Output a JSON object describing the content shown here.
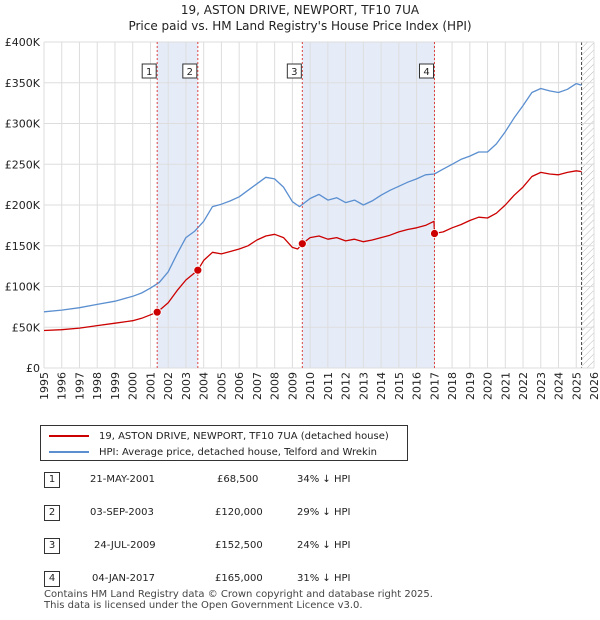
{
  "chart_data": {
    "type": "line",
    "title": "19, ASTON DRIVE, NEWPORT, TF10 7UA",
    "subtitle": "Price paid vs. HM Land Registry's House Price Index (HPI)",
    "xlim": [
      1995,
      2026
    ],
    "ylim": [
      0,
      400000
    ],
    "x_ticks": [
      "1995",
      "1996",
      "1997",
      "1998",
      "1999",
      "2000",
      "2001",
      "2002",
      "2003",
      "2004",
      "2005",
      "2006",
      "2007",
      "2008",
      "2009",
      "2010",
      "2011",
      "2012",
      "2013",
      "2014",
      "2015",
      "2016",
      "2017",
      "2018",
      "2019",
      "2020",
      "2021",
      "2022",
      "2023",
      "2024",
      "2025",
      "2026"
    ],
    "y_ticks": [
      {
        "label": "£0",
        "value": 0
      },
      {
        "label": "£50K",
        "value": 50000
      },
      {
        "label": "£100K",
        "value": 100000
      },
      {
        "label": "£150K",
        "value": 150000
      },
      {
        "label": "£200K",
        "value": 200000
      },
      {
        "label": "£250K",
        "value": 250000
      },
      {
        "label": "£300K",
        "value": 300000
      },
      {
        "label": "£350K",
        "value": 350000
      },
      {
        "label": "£400K",
        "value": 400000
      }
    ],
    "grid": true,
    "data_end": 2025.3,
    "colors": {
      "property": "#cc0000",
      "hpi": "#5b8fd0",
      "shade": "#dce6f5",
      "sale_line": "#dd4444",
      "grid": "#dddddd"
    },
    "series": [
      {
        "name": "19, ASTON DRIVE, NEWPORT, TF10 7UA (detached house)",
        "color": "#cc0000",
        "points": [
          [
            1995.0,
            46000
          ],
          [
            1996.0,
            47000
          ],
          [
            1997.0,
            49000
          ],
          [
            1998.0,
            52000
          ],
          [
            1999.0,
            55000
          ],
          [
            2000.0,
            58000
          ],
          [
            2000.5,
            61000
          ],
          [
            2001.38,
            68500
          ],
          [
            2002.0,
            80000
          ],
          [
            2002.5,
            95000
          ],
          [
            2003.0,
            108000
          ],
          [
            2003.67,
            120000
          ],
          [
            2004.0,
            132000
          ],
          [
            2004.5,
            142000
          ],
          [
            2005.0,
            140000
          ],
          [
            2005.5,
            143000
          ],
          [
            2006.0,
            146000
          ],
          [
            2006.5,
            150000
          ],
          [
            2007.0,
            157000
          ],
          [
            2007.5,
            162000
          ],
          [
            2008.0,
            164000
          ],
          [
            2008.5,
            160000
          ],
          [
            2009.0,
            148000
          ],
          [
            2009.3,
            146000
          ],
          [
            2009.56,
            152500
          ],
          [
            2010.0,
            160000
          ],
          [
            2010.5,
            162000
          ],
          [
            2011.0,
            158000
          ],
          [
            2011.5,
            160000
          ],
          [
            2012.0,
            156000
          ],
          [
            2012.5,
            158000
          ],
          [
            2013.0,
            155000
          ],
          [
            2013.5,
            157000
          ],
          [
            2014.0,
            160000
          ],
          [
            2014.5,
            163000
          ],
          [
            2015.0,
            167000
          ],
          [
            2015.5,
            170000
          ],
          [
            2016.0,
            172000
          ],
          [
            2016.5,
            175000
          ],
          [
            2016.98,
            180000
          ],
          [
            2017.01,
            165000
          ],
          [
            2017.5,
            167000
          ],
          [
            2018.0,
            172000
          ],
          [
            2018.5,
            176000
          ],
          [
            2019.0,
            181000
          ],
          [
            2019.5,
            185000
          ],
          [
            2020.0,
            184000
          ],
          [
            2020.5,
            190000
          ],
          [
            2021.0,
            200000
          ],
          [
            2021.5,
            212000
          ],
          [
            2022.0,
            222000
          ],
          [
            2022.5,
            235000
          ],
          [
            2023.0,
            240000
          ],
          [
            2023.5,
            238000
          ],
          [
            2024.0,
            237000
          ],
          [
            2024.5,
            240000
          ],
          [
            2025.0,
            242000
          ],
          [
            2025.3,
            241000
          ]
        ]
      },
      {
        "name": "HPI: Average price, detached house, Telford and Wrekin",
        "color": "#5b8fd0",
        "points": [
          [
            1995.0,
            69000
          ],
          [
            1996.0,
            71000
          ],
          [
            1997.0,
            74000
          ],
          [
            1998.0,
            78000
          ],
          [
            1999.0,
            82000
          ],
          [
            2000.0,
            88000
          ],
          [
            2000.5,
            92000
          ],
          [
            2001.0,
            98000
          ],
          [
            2001.5,
            105000
          ],
          [
            2002.0,
            118000
          ],
          [
            2002.5,
            140000
          ],
          [
            2003.0,
            160000
          ],
          [
            2003.5,
            168000
          ],
          [
            2004.0,
            180000
          ],
          [
            2004.5,
            198000
          ],
          [
            2005.0,
            201000
          ],
          [
            2005.5,
            205000
          ],
          [
            2006.0,
            210000
          ],
          [
            2006.5,
            218000
          ],
          [
            2007.0,
            226000
          ],
          [
            2007.5,
            234000
          ],
          [
            2008.0,
            232000
          ],
          [
            2008.5,
            222000
          ],
          [
            2009.0,
            204000
          ],
          [
            2009.4,
            198000
          ],
          [
            2010.0,
            208000
          ],
          [
            2010.5,
            213000
          ],
          [
            2011.0,
            206000
          ],
          [
            2011.5,
            209000
          ],
          [
            2012.0,
            203000
          ],
          [
            2012.5,
            206000
          ],
          [
            2013.0,
            200000
          ],
          [
            2013.5,
            205000
          ],
          [
            2014.0,
            212000
          ],
          [
            2014.5,
            218000
          ],
          [
            2015.0,
            223000
          ],
          [
            2015.5,
            228000
          ],
          [
            2016.0,
            232000
          ],
          [
            2016.5,
            237000
          ],
          [
            2017.0,
            238000
          ],
          [
            2017.5,
            244000
          ],
          [
            2018.0,
            250000
          ],
          [
            2018.5,
            256000
          ],
          [
            2019.0,
            260000
          ],
          [
            2019.5,
            265000
          ],
          [
            2020.0,
            265000
          ],
          [
            2020.5,
            275000
          ],
          [
            2021.0,
            290000
          ],
          [
            2021.5,
            307000
          ],
          [
            2022.0,
            322000
          ],
          [
            2022.5,
            338000
          ],
          [
            2023.0,
            343000
          ],
          [
            2023.5,
            340000
          ],
          [
            2024.0,
            338000
          ],
          [
            2024.5,
            342000
          ],
          [
            2025.0,
            349000
          ],
          [
            2025.3,
            347000
          ]
        ]
      }
    ],
    "sales": [
      {
        "num": "1",
        "x": 2001.38,
        "y": 68500
      },
      {
        "num": "2",
        "x": 2003.67,
        "y": 120000
      },
      {
        "num": "3",
        "x": 2009.56,
        "y": 152500
      },
      {
        "num": "4",
        "x": 2017.01,
        "y": 165000
      }
    ],
    "shaded_ranges": [
      [
        2001.38,
        2003.67
      ],
      [
        2009.56,
        2017.01
      ]
    ]
  },
  "legend": {
    "property_label": "19, ASTON DRIVE, NEWPORT, TF10 7UA (detached house)",
    "hpi_label": "HPI: Average price, detached house, Telford and Wrekin"
  },
  "sales_table": [
    {
      "num": "1",
      "date": "21-MAY-2001",
      "price": "£68,500",
      "diff": "34% ↓ HPI"
    },
    {
      "num": "2",
      "date": "03-SEP-2003",
      "price": "£120,000",
      "diff": "29% ↓ HPI"
    },
    {
      "num": "3",
      "date": "24-JUL-2009",
      "price": "£152,500",
      "diff": "24% ↓ HPI"
    },
    {
      "num": "4",
      "date": "04-JAN-2017",
      "price": "£165,000",
      "diff": "31% ↓ HPI"
    }
  ],
  "footer": {
    "line1": "Contains HM Land Registry data © Crown copyright and database right 2025.",
    "line2": "This data is licensed under the Open Government Licence v3.0."
  }
}
